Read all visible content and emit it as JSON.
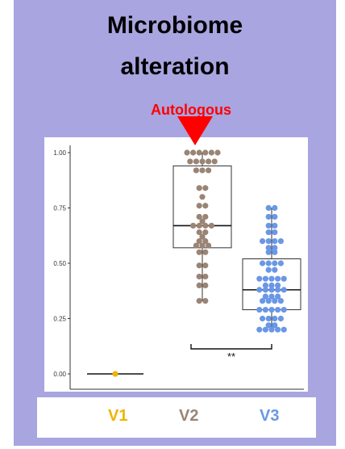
{
  "title_line1": "Microbiome",
  "title_line2": "alteration",
  "annotation": "Autologous",
  "significance": "**",
  "colors": {
    "panel_bg": "#a8a5e0",
    "annotation": "#ff0000",
    "V1": "#f0b400",
    "V2": "#9a8474",
    "V3": "#6a97e6"
  },
  "chart_data": {
    "type": "box-dotplot",
    "categories": [
      "V1",
      "V2",
      "V3"
    ],
    "ylim": [
      0,
      1.04
    ],
    "yticks": [
      "0.00",
      "0.25",
      "0.50",
      "0.75",
      "1.00"
    ],
    "series": [
      {
        "name": "V1",
        "box": {
          "q1": 0.0,
          "median": 0.0,
          "q3": 0.0,
          "min": 0.0,
          "max": 0.0
        },
        "points": [
          0.0
        ]
      },
      {
        "name": "V2",
        "box": {
          "q1": 0.57,
          "median": 0.67,
          "q3": 0.94,
          "min": 0.33,
          "max": 1.0
        },
        "points": [
          1.0,
          1.0,
          1.0,
          1.0,
          1.0,
          1.0,
          0.96,
          0.96,
          0.96,
          0.96,
          0.96,
          0.92,
          0.92,
          0.92,
          0.84,
          0.84,
          0.8,
          0.76,
          0.76,
          0.71,
          0.71,
          0.69,
          0.67,
          0.67,
          0.67,
          0.67,
          0.64,
          0.64,
          0.62,
          0.6,
          0.6,
          0.58,
          0.58,
          0.58,
          0.55,
          0.55,
          0.49,
          0.49,
          0.44,
          0.44,
          0.4,
          0.4,
          0.33,
          0.33
        ]
      },
      {
        "name": "V3",
        "box": {
          "q1": 0.29,
          "median": 0.38,
          "q3": 0.52,
          "min": 0.2,
          "max": 0.75
        },
        "points": [
          0.75,
          0.75,
          0.71,
          0.71,
          0.67,
          0.67,
          0.64,
          0.64,
          0.6,
          0.6,
          0.6,
          0.6,
          0.57,
          0.57,
          0.55,
          0.55,
          0.5,
          0.5,
          0.5,
          0.5,
          0.47,
          0.47,
          0.43,
          0.43,
          0.43,
          0.43,
          0.43,
          0.4,
          0.4,
          0.4,
          0.38,
          0.38,
          0.38,
          0.38,
          0.38,
          0.35,
          0.35,
          0.35,
          0.33,
          0.33,
          0.33,
          0.33,
          0.29,
          0.29,
          0.29,
          0.29,
          0.29,
          0.25,
          0.25,
          0.25,
          0.25,
          0.22,
          0.22,
          0.2,
          0.2,
          0.2,
          0.2,
          0.2
        ]
      }
    ]
  }
}
